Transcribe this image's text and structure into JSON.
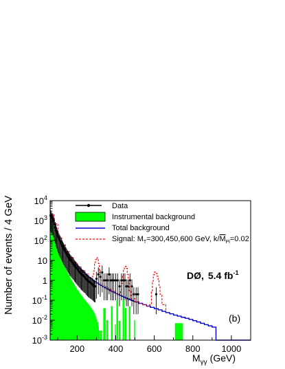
{
  "chart_data": {
    "type": "line",
    "panel_label": "(b)",
    "experiment_label": "DØ,",
    "luminosity_label": "5.4 fb",
    "luminosity_exp": "-1",
    "xlabel": "M",
    "xlabel_sub": "γγ",
    "xlabel_unit": "(GeV)",
    "ylabel": "Number of events / 4 GeV",
    "xlim": [
      60,
      1100
    ],
    "ylim_log10": [
      -3,
      4
    ],
    "log_y": true,
    "x_ticks": [
      200,
      400,
      600,
      800,
      1000
    ],
    "y_ticks": [
      {
        "exp": -3,
        "label": "10",
        "sup": "-3"
      },
      {
        "exp": -2,
        "label": "10",
        "sup": "-2"
      },
      {
        "exp": -1,
        "label": "10",
        "sup": "-1"
      },
      {
        "exp": 0,
        "label": "1",
        "sup": ""
      },
      {
        "exp": 1,
        "label": "10",
        "sup": ""
      },
      {
        "exp": 2,
        "label": "10",
        "sup": "2"
      },
      {
        "exp": 3,
        "label": "10",
        "sup": "3"
      },
      {
        "exp": 4,
        "label": "10",
        "sup": "4"
      }
    ],
    "colors": {
      "instrumental": "#00ff00",
      "total": "#0000cc",
      "signal": "#ff0000",
      "data": "#000000"
    },
    "legend": {
      "placement": "top-center",
      "entries": [
        {
          "key": "data",
          "label": "Data"
        },
        {
          "key": "instrumental",
          "label": "Instrumental background"
        },
        {
          "key": "total",
          "label": "Total background"
        },
        {
          "key": "signal",
          "label": "Signal: M",
          "label_sub": "T",
          "label_mid": "=300,450,600 GeV, k/",
          "label_over": "M",
          "label_sub2": "Pl",
          "label_end": "=0.02"
        }
      ]
    },
    "instrumental_background": {
      "bin_width": 4,
      "bins": [
        [
          60,
          1500
        ],
        [
          64,
          900
        ],
        [
          68,
          600
        ],
        [
          72,
          380
        ],
        [
          76,
          250
        ],
        [
          80,
          170
        ],
        [
          84,
          118
        ],
        [
          88,
          84
        ],
        [
          92,
          62
        ],
        [
          96,
          46
        ],
        [
          100,
          35
        ],
        [
          104,
          27
        ],
        [
          108,
          21
        ],
        [
          112,
          16
        ],
        [
          116,
          12.5
        ],
        [
          120,
          10
        ],
        [
          124,
          8
        ],
        [
          128,
          6.5
        ],
        [
          132,
          5.2
        ],
        [
          136,
          4.3
        ],
        [
          140,
          3.6
        ],
        [
          144,
          3.0
        ],
        [
          148,
          2.5
        ],
        [
          152,
          2.1
        ],
        [
          156,
          1.8
        ],
        [
          160,
          1.55
        ],
        [
          164,
          1.3
        ],
        [
          168,
          1.1
        ],
        [
          172,
          0.95
        ],
        [
          176,
          0.8
        ],
        [
          180,
          0.7
        ],
        [
          184,
          0.6
        ],
        [
          188,
          0.52
        ],
        [
          192,
          0.45
        ],
        [
          196,
          0.39
        ],
        [
          200,
          0.34
        ],
        [
          204,
          0.3
        ],
        [
          208,
          0.26
        ],
        [
          212,
          0.23
        ],
        [
          216,
          0.2
        ],
        [
          220,
          0.18
        ],
        [
          224,
          0.16
        ],
        [
          228,
          0.14
        ],
        [
          232,
          0.125
        ],
        [
          236,
          0.11
        ],
        [
          240,
          0.1
        ],
        [
          244,
          0.09
        ],
        [
          248,
          0.08
        ],
        [
          252,
          0.072
        ],
        [
          256,
          0.065
        ],
        [
          260,
          0.058
        ],
        [
          264,
          0.052
        ],
        [
          268,
          0.046
        ],
        [
          272,
          0.04
        ],
        [
          276,
          0.035
        ],
        [
          280,
          0.03
        ],
        [
          284,
          0.026
        ],
        [
          288,
          0.022
        ],
        [
          292,
          0.018
        ],
        [
          296,
          0.014
        ],
        [
          300,
          0.011
        ],
        [
          304,
          0.008
        ],
        [
          308,
          0.005
        ],
        [
          312,
          0.003
        ],
        [
          320,
          0.003
        ],
        [
          324,
          0.003
        ],
        [
          336,
          0.04
        ],
        [
          340,
          0.04
        ],
        [
          344,
          0.04
        ],
        [
          352,
          0.01
        ],
        [
          356,
          0.01
        ],
        [
          376,
          0.05
        ],
        [
          380,
          0.05
        ],
        [
          396,
          0.006
        ],
        [
          404,
          0.1
        ],
        [
          408,
          0.1
        ],
        [
          416,
          0.009
        ],
        [
          420,
          0.009
        ],
        [
          436,
          0.1
        ],
        [
          440,
          0.1
        ],
        [
          448,
          0.04
        ],
        [
          452,
          0.04
        ],
        [
          468,
          0.05
        ],
        [
          472,
          0.05
        ],
        [
          496,
          0.01
        ],
        [
          708,
          0.007
        ],
        [
          712,
          0.007
        ],
        [
          716,
          0.007
        ],
        [
          720,
          0.007
        ],
        [
          724,
          0.007
        ],
        [
          728,
          0.007
        ],
        [
          732,
          0.007
        ],
        [
          736,
          0.007
        ],
        [
          740,
          0.007
        ],
        [
          744,
          0.007
        ]
      ]
    },
    "total_background": [
      [
        60,
        2000
      ],
      [
        70,
        1300
      ],
      [
        80,
        700
      ],
      [
        90,
        300
      ],
      [
        100,
        150
      ],
      [
        110,
        95
      ],
      [
        120,
        60
      ],
      [
        130,
        40
      ],
      [
        140,
        28
      ],
      [
        150,
        20
      ],
      [
        160,
        14
      ],
      [
        170,
        10.5
      ],
      [
        180,
        8
      ],
      [
        190,
        6
      ],
      [
        200,
        4.8
      ],
      [
        210,
        3.8
      ],
      [
        220,
        3.1
      ],
      [
        230,
        2.5
      ],
      [
        240,
        2.05
      ],
      [
        250,
        1.7
      ],
      [
        260,
        1.4
      ],
      [
        270,
        1.2
      ],
      [
        280,
        1.0
      ],
      [
        290,
        0.86
      ],
      [
        300,
        0.74
      ],
      [
        310,
        0.64
      ],
      [
        320,
        0.56
      ],
      [
        330,
        0.49
      ],
      [
        340,
        0.43
      ],
      [
        350,
        0.38
      ],
      [
        360,
        0.34
      ],
      [
        370,
        0.3
      ],
      [
        380,
        0.27
      ],
      [
        390,
        0.24
      ],
      [
        400,
        0.215
      ],
      [
        410,
        0.195
      ],
      [
        420,
        0.175
      ],
      [
        430,
        0.158
      ],
      [
        440,
        0.143
      ],
      [
        450,
        0.13
      ],
      [
        460,
        0.118
      ],
      [
        470,
        0.107
      ],
      [
        480,
        0.098
      ],
      [
        490,
        0.09
      ],
      [
        500,
        0.082
      ],
      [
        520,
        0.07
      ],
      [
        540,
        0.06
      ],
      [
        560,
        0.051
      ],
      [
        580,
        0.044
      ],
      [
        600,
        0.038
      ],
      [
        620,
        0.033
      ],
      [
        640,
        0.028
      ],
      [
        660,
        0.024
      ],
      [
        680,
        0.021
      ],
      [
        700,
        0.018
      ],
      [
        720,
        0.016
      ],
      [
        740,
        0.014
      ],
      [
        760,
        0.0125
      ],
      [
        780,
        0.011
      ],
      [
        800,
        0.0095
      ],
      [
        820,
        0.0082
      ],
      [
        840,
        0.007
      ],
      [
        860,
        0.006
      ],
      [
        880,
        0.0052
      ],
      [
        900,
        0.0045
      ],
      [
        920,
        0.001
      ],
      [
        1100,
        0.001
      ]
    ],
    "signal": [
      [
        60,
        2000
      ],
      [
        80,
        700
      ],
      [
        100,
        150
      ],
      [
        120,
        60
      ],
      [
        140,
        28
      ],
      [
        160,
        14
      ],
      [
        180,
        8
      ],
      [
        200,
        4.8
      ],
      [
        220,
        3.1
      ],
      [
        240,
        2.05
      ],
      [
        260,
        1.4
      ],
      [
        270,
        1.3
      ],
      [
        280,
        1.6
      ],
      [
        285,
        3
      ],
      [
        290,
        7
      ],
      [
        295,
        11
      ],
      [
        300,
        14
      ],
      [
        305,
        12
      ],
      [
        310,
        7
      ],
      [
        315,
        2.5
      ],
      [
        320,
        1.0
      ],
      [
        330,
        0.6
      ],
      [
        340,
        0.47
      ],
      [
        360,
        0.36
      ],
      [
        380,
        0.28
      ],
      [
        400,
        0.22
      ],
      [
        420,
        0.2
      ],
      [
        425,
        0.3
      ],
      [
        430,
        0.7
      ],
      [
        435,
        1.6
      ],
      [
        440,
        3.2
      ],
      [
        445,
        4.8
      ],
      [
        450,
        5
      ],
      [
        455,
        4
      ],
      [
        460,
        2
      ],
      [
        465,
        0.8
      ],
      [
        470,
        0.3
      ],
      [
        480,
        0.12
      ],
      [
        500,
        0.085
      ],
      [
        520,
        0.07
      ],
      [
        540,
        0.06
      ],
      [
        560,
        0.05
      ],
      [
        575,
        0.06
      ],
      [
        585,
        0.3
      ],
      [
        590,
        0.9
      ],
      [
        595,
        1.9
      ],
      [
        600,
        2.6
      ],
      [
        605,
        2.6
      ],
      [
        610,
        2.2
      ],
      [
        615,
        1.6
      ],
      [
        620,
        1.0
      ],
      [
        625,
        0.5
      ],
      [
        630,
        0.2
      ],
      [
        640,
        0.06
      ],
      [
        660,
        0.026
      ]
    ],
    "data_points": [
      [
        62,
        1800,
        0.8
      ],
      [
        66,
        1500,
        0.8
      ],
      [
        70,
        1300,
        0.8
      ],
      [
        74,
        1150,
        0.8
      ],
      [
        78,
        900,
        0.8
      ],
      [
        82,
        650,
        0.8
      ],
      [
        86,
        450,
        0.8
      ],
      [
        90,
        320,
        0.8
      ],
      [
        94,
        250,
        0.8
      ],
      [
        98,
        190,
        0.8
      ],
      [
        102,
        150,
        0.8
      ],
      [
        106,
        120,
        0.8
      ],
      [
        110,
        100,
        0.8
      ],
      [
        114,
        82,
        0.8
      ],
      [
        118,
        68,
        0.8
      ],
      [
        122,
        55,
        0.8
      ],
      [
        126,
        46,
        0.8
      ],
      [
        130,
        39,
        0.8
      ],
      [
        134,
        33,
        0.8
      ],
      [
        138,
        28,
        0.8
      ],
      [
        142,
        24,
        0.8
      ],
      [
        146,
        20,
        0.8
      ],
      [
        150,
        17,
        0.8
      ],
      [
        154,
        15,
        0.8
      ],
      [
        158,
        13,
        0.8
      ],
      [
        162,
        11,
        0.8
      ],
      [
        166,
        10,
        0.8
      ],
      [
        170,
        9,
        0.8
      ],
      [
        174,
        8,
        0.8
      ],
      [
        178,
        7,
        0.8
      ],
      [
        182,
        6.5,
        0.8
      ],
      [
        186,
        5.5,
        0.8
      ],
      [
        190,
        5,
        0.8
      ],
      [
        194,
        4.5,
        0.8
      ],
      [
        198,
        4,
        0.8
      ],
      [
        202,
        3.5,
        0.8
      ],
      [
        206,
        3.2,
        0.8
      ],
      [
        210,
        2.8,
        0.8
      ],
      [
        214,
        2.6,
        0.8
      ],
      [
        218,
        2.3,
        0.8
      ],
      [
        222,
        2.1,
        0.8
      ],
      [
        226,
        1.9,
        0.8
      ],
      [
        230,
        1.8,
        0.8
      ],
      [
        234,
        1.6,
        0.8
      ],
      [
        238,
        1.5,
        0.8
      ],
      [
        242,
        1.4,
        0.8
      ],
      [
        246,
        1.2,
        0.8
      ],
      [
        250,
        1.1,
        0.8
      ],
      [
        254,
        1.0,
        0.8
      ],
      [
        258,
        0.9,
        0.8
      ],
      [
        262,
        0.85,
        0.8
      ],
      [
        266,
        0.8,
        0.8
      ],
      [
        270,
        0.75,
        0.8
      ],
      [
        274,
        0.7,
        0.8
      ],
      [
        278,
        0.65,
        0.8
      ],
      [
        282,
        0.6,
        0.8
      ],
      [
        286,
        0.55,
        0.8
      ],
      [
        290,
        0.5,
        0.8
      ],
      [
        294,
        0.5,
        0.8
      ],
      [
        300,
        1.2,
        1.0
      ],
      [
        310,
        2,
        1.0
      ],
      [
        320,
        1.5,
        1.0
      ],
      [
        330,
        2.5,
        1.0
      ],
      [
        340,
        1,
        1.0
      ],
      [
        350,
        1,
        1.0
      ],
      [
        358,
        1,
        1.0
      ],
      [
        366,
        2,
        1.0
      ],
      [
        374,
        1,
        1.0
      ],
      [
        382,
        1,
        1.0
      ],
      [
        390,
        1,
        1.0
      ],
      [
        400,
        1,
        1.0
      ],
      [
        410,
        1,
        1.0
      ],
      [
        420,
        0.5,
        1.0
      ],
      [
        430,
        1,
        1.0
      ],
      [
        440,
        1,
        1.0
      ],
      [
        448,
        1,
        1.0
      ],
      [
        456,
        0.5,
        1.0
      ],
      [
        464,
        0.5,
        1.0
      ],
      [
        474,
        1,
        1.0
      ],
      [
        484,
        0.5,
        1.0
      ],
      [
        494,
        0.2,
        1.0
      ],
      [
        506,
        0.2,
        1.0
      ],
      [
        516,
        0.2,
        1.0
      ],
      [
        610,
        0.2,
        1.0
      ]
    ]
  }
}
